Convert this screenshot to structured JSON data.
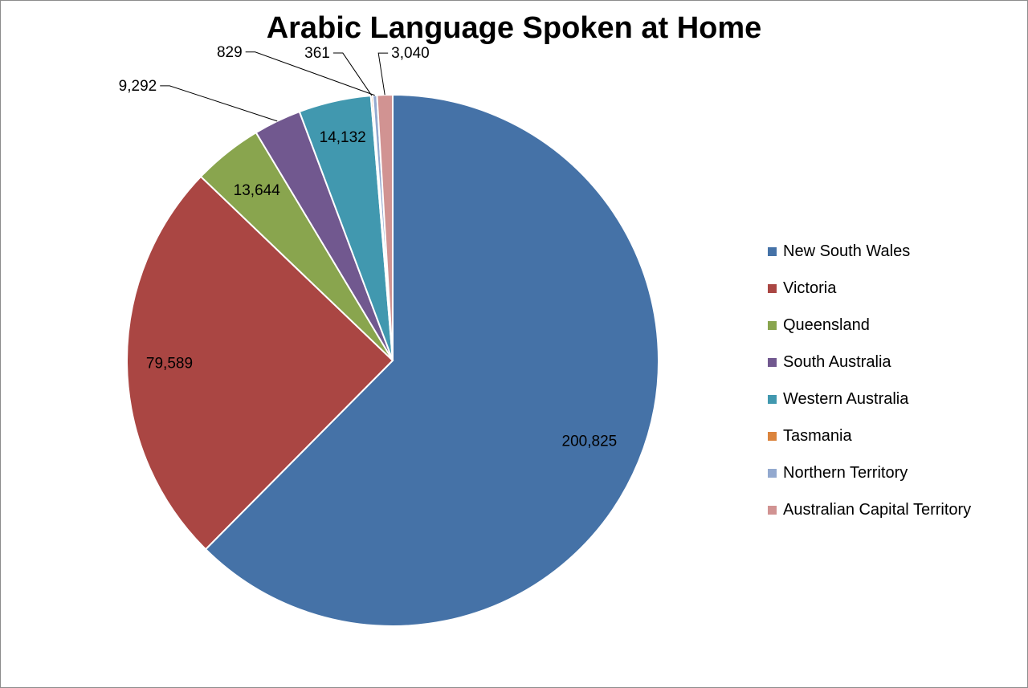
{
  "chart_data": {
    "type": "pie",
    "title": "Arabic Language Spoken at Home",
    "legend_position": "right",
    "categories": [
      "New South Wales",
      "Victoria",
      "Queensland",
      "South Australia",
      "Western Australia",
      "Tasmania",
      "Northern Territory",
      "Australian Capital Territory"
    ],
    "values": [
      200825,
      79589,
      13644,
      9292,
      14132,
      361,
      829,
      3040
    ],
    "labels": [
      "200,825",
      "79,589",
      "13,644",
      "9,292",
      "14,132",
      "361",
      "829",
      "3,040"
    ],
    "colors": [
      "#4572a7",
      "#aa4643",
      "#89a54e",
      "#71588f",
      "#4198af",
      "#db843d",
      "#93a9cf",
      "#d19392"
    ]
  }
}
